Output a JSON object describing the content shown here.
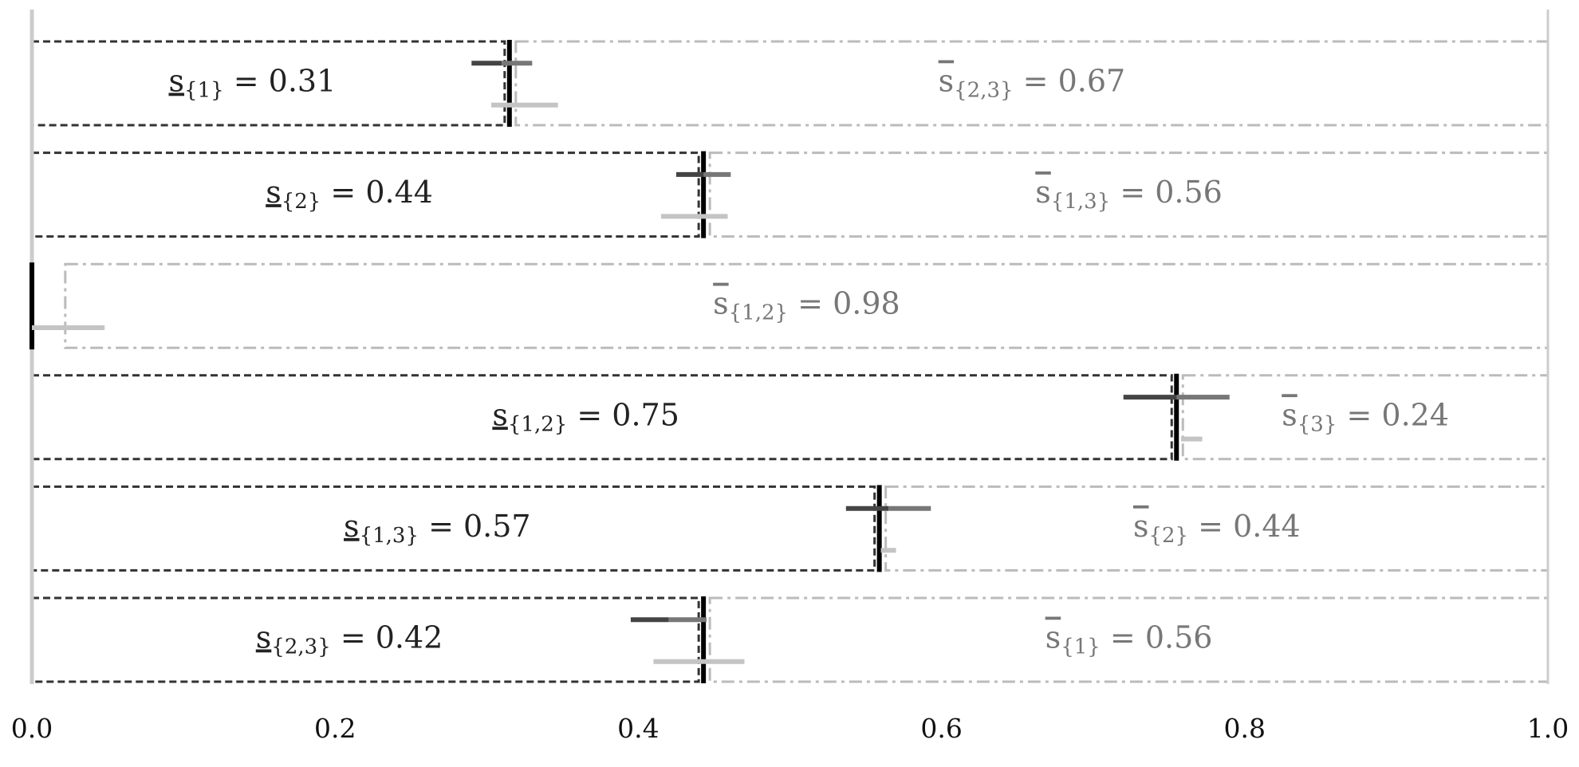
{
  "chart_data": {
    "type": "bar",
    "title": "",
    "xlabel": "",
    "ylabel": "",
    "xlim": [
      0.0,
      1.0
    ],
    "xticks": [
      0.0,
      0.2,
      0.4,
      0.6,
      0.8,
      1.0
    ],
    "xtick_labels": [
      "0.0",
      "0.2",
      "0.4",
      "0.6",
      "0.8",
      "1.0"
    ],
    "grid": false,
    "legend": "none",
    "colors": {
      "lower_box": "#333333",
      "upper_box": "#bbbbbb",
      "marker_main": "#000000",
      "marker_lower": "#444444",
      "marker_upper": "#c4c4c4",
      "axis_line": "#cccccc",
      "label_lower": "#222222",
      "label_upper": "#777777"
    },
    "rows": [
      {
        "lower": {
          "symbol": "s",
          "subscript": "{1}",
          "equals": " = ",
          "value_text": "0.31",
          "value": 0.31
        },
        "upper": {
          "symbol": "s",
          "subscript": "{2,3}",
          "equals": " = ",
          "value_text": "0.67",
          "value": 0.67
        },
        "marker": 0.315,
        "lower_marker": {
          "center": 0.31,
          "half_width": 0.02
        },
        "upper_marker": {
          "center": 0.325,
          "half_width": 0.022
        }
      },
      {
        "lower": {
          "symbol": "s",
          "subscript": "{2}",
          "equals": " = ",
          "value_text": "0.44",
          "value": 0.44
        },
        "upper": {
          "symbol": "s",
          "subscript": "{1,3}",
          "equals": " = ",
          "value_text": "0.56",
          "value": 0.56
        },
        "marker": 0.443,
        "lower_marker": {
          "center": 0.443,
          "half_width": 0.018
        },
        "upper_marker": {
          "center": 0.437,
          "half_width": 0.022
        }
      },
      {
        "lower": null,
        "upper": {
          "symbol": "s",
          "subscript": "{1,2}",
          "equals": " = ",
          "value_text": "0.98",
          "value": 0.98
        },
        "marker": 0.0,
        "lower_marker": null,
        "upper_marker": {
          "center": 0.022,
          "half_width": 0.026
        }
      },
      {
        "lower": {
          "symbol": "s",
          "subscript": "{1,2}",
          "equals": " = ",
          "value_text": "0.75",
          "value": 0.75
        },
        "upper": {
          "symbol": "s",
          "subscript": "{3}",
          "equals": " = ",
          "value_text": "0.24",
          "value": 0.24
        },
        "marker": 0.755,
        "lower_marker": {
          "center": 0.755,
          "half_width": 0.035
        },
        "upper_marker": {
          "center": 0.765,
          "half_width": 0.007
        }
      },
      {
        "lower": {
          "symbol": "s",
          "subscript": "{1,3}",
          "equals": " = ",
          "value_text": "0.57",
          "value": 0.57
        },
        "upper": {
          "symbol": "s",
          "subscript": "{2}",
          "equals": " = ",
          "value_text": "0.44",
          "value": 0.44
        },
        "marker": 0.559,
        "lower_marker": {
          "center": 0.565,
          "half_width": 0.028
        },
        "upper_marker": {
          "center": 0.565,
          "half_width": 0.005
        }
      },
      {
        "lower": {
          "symbol": "s",
          "subscript": "{2,3}",
          "equals": " = ",
          "value_text": "0.42",
          "value": 0.42
        },
        "upper": {
          "symbol": "s",
          "subscript": "{1}",
          "equals": " = ",
          "value_text": "0.56",
          "value": 0.56
        },
        "marker": 0.443,
        "lower_marker": {
          "center": 0.42,
          "half_width": 0.025
        },
        "upper_marker": {
          "center": 0.44,
          "half_width": 0.03
        }
      }
    ]
  }
}
